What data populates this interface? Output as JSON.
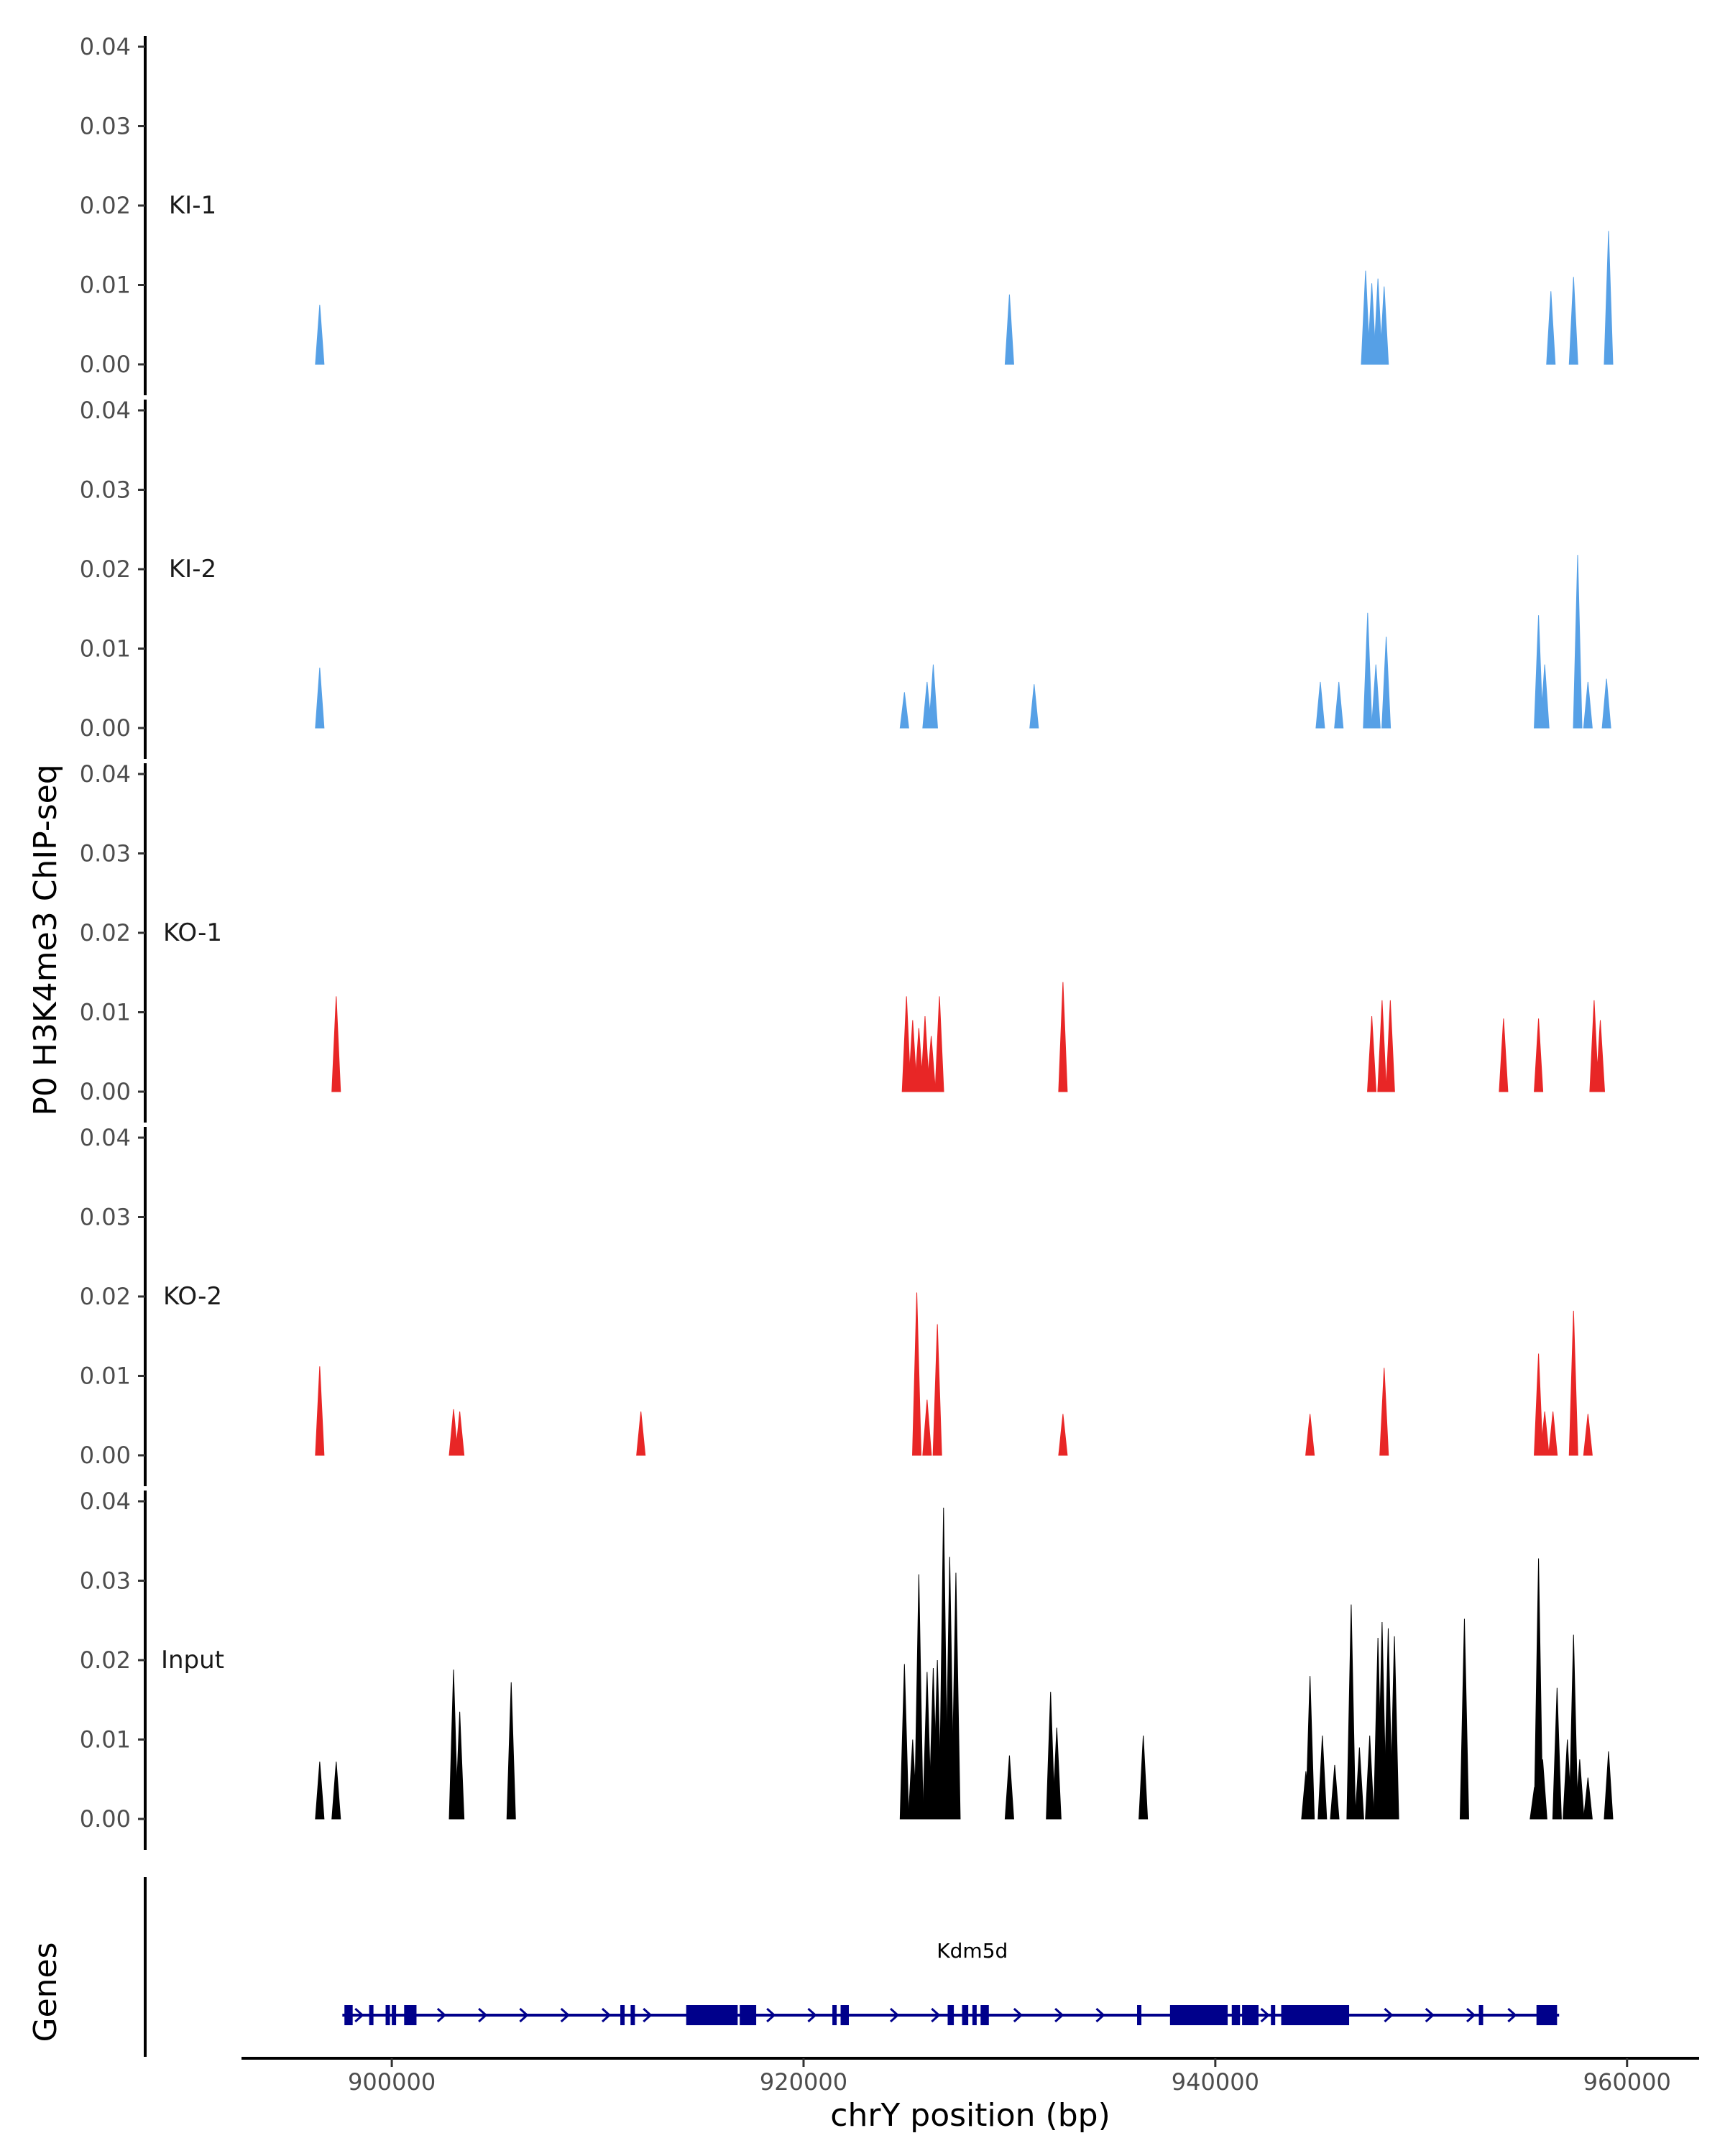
{
  "chart_data": {
    "type": "area",
    "title": "",
    "ylabel": "P0 H3K4me3 ChIP-seq",
    "xlabel": "chrY position (bp)",
    "xlim": [
      892700,
      963500
    ],
    "ylim": [
      0,
      0.042
    ],
    "x_ticks": [
      900000,
      920000,
      940000,
      960000
    ],
    "x_tick_labels": [
      "900000",
      "920000",
      "940000",
      "960000"
    ],
    "y_ticks": [
      0,
      0.01,
      0.02,
      0.03,
      0.04
    ],
    "y_tick_labels": [
      "0.00",
      "0.01",
      "0.02",
      "0.03",
      "0.04"
    ],
    "peak_half_width_bp": 120,
    "tracks": [
      {
        "name": "KI-1",
        "color": "#56a0e6",
        "peaks": [
          [
            896500,
            0.0075
          ],
          [
            930000,
            0.0088
          ],
          [
            947300,
            0.0118
          ],
          [
            947600,
            0.0102
          ],
          [
            947900,
            0.0108
          ],
          [
            948200,
            0.0098
          ],
          [
            956300,
            0.0092
          ],
          [
            957400,
            0.011
          ],
          [
            959100,
            0.0168
          ]
        ]
      },
      {
        "name": "KI-2",
        "color": "#56a0e6",
        "peaks": [
          [
            896500,
            0.0076
          ],
          [
            924900,
            0.0045
          ],
          [
            926000,
            0.0058
          ],
          [
            926300,
            0.008
          ],
          [
            931200,
            0.0055
          ],
          [
            945100,
            0.0058
          ],
          [
            946000,
            0.0058
          ],
          [
            947400,
            0.0145
          ],
          [
            947800,
            0.008
          ],
          [
            948300,
            0.0115
          ],
          [
            955700,
            0.0142
          ],
          [
            956000,
            0.008
          ],
          [
            957600,
            0.0218
          ],
          [
            958100,
            0.0058
          ],
          [
            959000,
            0.0062
          ]
        ]
      },
      {
        "name": "KO-1",
        "color": "#e82626",
        "peaks": [
          [
            897300,
            0.012
          ],
          [
            925000,
            0.012
          ],
          [
            925300,
            0.009
          ],
          [
            925600,
            0.008
          ],
          [
            925900,
            0.0095
          ],
          [
            926200,
            0.007
          ],
          [
            926600,
            0.012
          ],
          [
            932600,
            0.0138
          ],
          [
            947600,
            0.0095
          ],
          [
            948100,
            0.0115
          ],
          [
            948500,
            0.0115
          ],
          [
            954000,
            0.0092
          ],
          [
            955700,
            0.0092
          ],
          [
            958400,
            0.0115
          ],
          [
            958700,
            0.009
          ]
        ]
      },
      {
        "name": "KO-2",
        "color": "#e82626",
        "peaks": [
          [
            896500,
            0.0112
          ],
          [
            903000,
            0.0058
          ],
          [
            903300,
            0.0055
          ],
          [
            912100,
            0.0055
          ],
          [
            925500,
            0.0205
          ],
          [
            926000,
            0.007
          ],
          [
            926500,
            0.0165
          ],
          [
            932600,
            0.0052
          ],
          [
            944600,
            0.0052
          ],
          [
            948200,
            0.011
          ],
          [
            955700,
            0.0128
          ],
          [
            956000,
            0.0055
          ],
          [
            956400,
            0.0055
          ],
          [
            957400,
            0.0182
          ],
          [
            958100,
            0.0052
          ]
        ]
      },
      {
        "name": "Input",
        "color": "#000000",
        "peaks": [
          [
            896500,
            0.0072
          ],
          [
            897300,
            0.0072
          ],
          [
            903000,
            0.0188
          ],
          [
            903300,
            0.0135
          ],
          [
            905800,
            0.0172
          ],
          [
            924900,
            0.0195
          ],
          [
            925300,
            0.01
          ],
          [
            925600,
            0.0308
          ],
          [
            926000,
            0.0185
          ],
          [
            926300,
            0.019
          ],
          [
            926500,
            0.02
          ],
          [
            926800,
            0.0392
          ],
          [
            927100,
            0.033
          ],
          [
            927400,
            0.031
          ],
          [
            930000,
            0.008
          ],
          [
            932000,
            0.016
          ],
          [
            932300,
            0.0115
          ],
          [
            936500,
            0.0105
          ],
          [
            944400,
            0.006
          ],
          [
            944600,
            0.018
          ],
          [
            945200,
            0.0105
          ],
          [
            945800,
            0.0068
          ],
          [
            946600,
            0.027
          ],
          [
            947000,
            0.009
          ],
          [
            947500,
            0.0105
          ],
          [
            947900,
            0.0228
          ],
          [
            948100,
            0.0248
          ],
          [
            948400,
            0.024
          ],
          [
            948700,
            0.023
          ],
          [
            952100,
            0.0252
          ],
          [
            955500,
            0.004
          ],
          [
            955700,
            0.0328
          ],
          [
            955900,
            0.0075
          ],
          [
            956600,
            0.0165
          ],
          [
            957100,
            0.01
          ],
          [
            957400,
            0.0232
          ],
          [
            957700,
            0.0075
          ],
          [
            958100,
            0.0052
          ],
          [
            959100,
            0.0085
          ]
        ]
      }
    ],
    "gene_track": {
      "label": "Genes",
      "gene_name": "Kdm5d",
      "strand": "+",
      "start": 897600,
      "end": 956700,
      "color": "#00008b",
      "exons": [
        [
          897700,
          898100
        ],
        [
          898900,
          899100
        ],
        [
          899700,
          899900
        ],
        [
          900000,
          900200
        ],
        [
          900600,
          901200
        ],
        [
          911100,
          911300
        ],
        [
          911600,
          911800
        ],
        [
          914300,
          916800
        ],
        [
          916900,
          917700
        ],
        [
          921400,
          921600
        ],
        [
          921800,
          922200
        ],
        [
          927000,
          927300
        ],
        [
          927700,
          928000
        ],
        [
          928200,
          928400
        ],
        [
          928600,
          929000
        ],
        [
          936200,
          936400
        ],
        [
          937800,
          940600
        ],
        [
          940800,
          941200
        ],
        [
          941300,
          942100
        ],
        [
          942700,
          942900
        ],
        [
          943200,
          946500
        ],
        [
          952800,
          953000
        ],
        [
          955600,
          956600
        ]
      ]
    }
  }
}
